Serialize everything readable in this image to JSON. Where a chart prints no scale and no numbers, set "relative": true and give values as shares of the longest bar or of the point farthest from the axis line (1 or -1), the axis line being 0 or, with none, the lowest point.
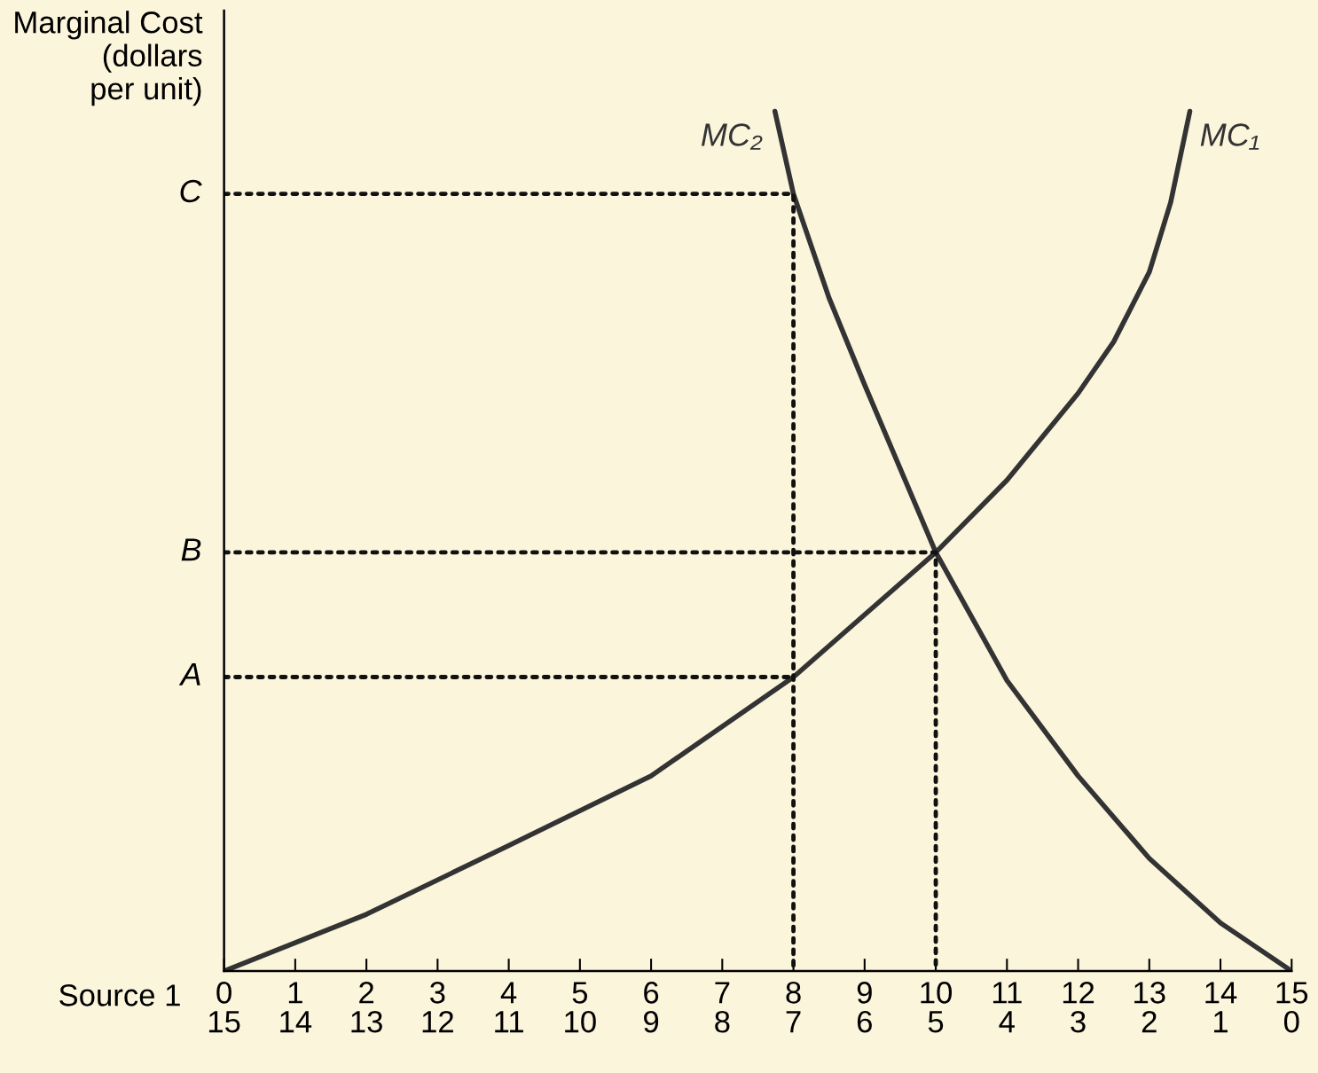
{
  "chart_data": {
    "type": "line",
    "relative": true,
    "ylabel": "Marginal Cost\n(dollars\nper unit)",
    "xlabel": "Source 1",
    "xlim": [
      0,
      15
    ],
    "xticks": [
      0,
      1,
      2,
      3,
      4,
      5,
      6,
      7,
      8,
      9,
      10,
      11,
      12,
      13,
      14,
      15
    ],
    "x2lim": [
      15,
      0
    ],
    "x2ticks": [
      15,
      14,
      13,
      12,
      11,
      10,
      9,
      8,
      7,
      6,
      5,
      4,
      3,
      2,
      1,
      0
    ],
    "grid": false,
    "legend": false,
    "marker": "none",
    "series": [
      {
        "name": "MC₁",
        "color": "#333333",
        "line_style": "solid",
        "x": [
          0,
          2,
          4,
          6,
          8,
          10,
          11,
          12,
          12.5,
          13,
          13.3,
          13.57
        ],
        "values": [
          0,
          0.066,
          0.146,
          0.227,
          0.342,
          0.487,
          0.571,
          0.672,
          0.732,
          0.813,
          0.894,
          1.0
        ]
      },
      {
        "name": "MC₂",
        "color": "#333333",
        "line_style": "solid",
        "x": [
          7.74,
          8,
          8.5,
          9,
          10,
          11,
          12,
          13,
          14,
          15
        ],
        "values": [
          1.0,
          0.904,
          0.783,
          0.682,
          0.487,
          0.338,
          0.227,
          0.131,
          0.056,
          0
        ]
      },
      {
        "color": "#111111",
        "line_style": "dotted",
        "x": [
          0,
          8,
          8
        ],
        "values": [
          0.904,
          0.904,
          0
        ]
      },
      {
        "color": "#111111",
        "line_style": "dotted",
        "x": [
          0,
          10,
          10
        ],
        "values": [
          0.487,
          0.487,
          0
        ]
      },
      {
        "color": "#111111",
        "line_style": "dotted",
        "x": [
          0,
          8
        ],
        "values": [
          0.342,
          0.342
        ]
      }
    ],
    "annotations": [
      "C",
      "B",
      "A"
    ]
  }
}
